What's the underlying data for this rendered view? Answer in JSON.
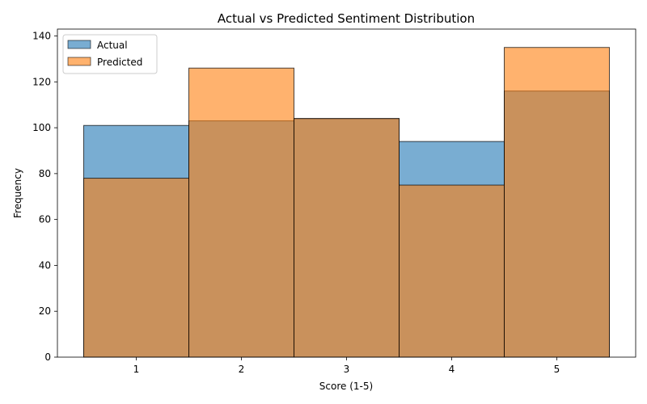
{
  "chart_data": {
    "type": "bar",
    "title": "Actual vs Predicted Sentiment Distribution",
    "xlabel": "Score (1-5)",
    "ylabel": "Frequency",
    "categories": [
      "1",
      "2",
      "3",
      "4",
      "5"
    ],
    "yticks": [
      0,
      20,
      40,
      60,
      80,
      100,
      120,
      140
    ],
    "ylim": [
      0,
      143
    ],
    "xlim": [
      0.25,
      5.75
    ],
    "bar_width": 1.0,
    "overlap": true,
    "legend_position": "top-left",
    "series": [
      {
        "name": "Actual",
        "color": "#1f77b4",
        "opacity": 0.6,
        "values": [
          101,
          103,
          104,
          94,
          116
        ]
      },
      {
        "name": "Predicted",
        "color": "#ff7f0e",
        "opacity": 0.6,
        "values": [
          78,
          126,
          104,
          75,
          135
        ]
      }
    ]
  }
}
